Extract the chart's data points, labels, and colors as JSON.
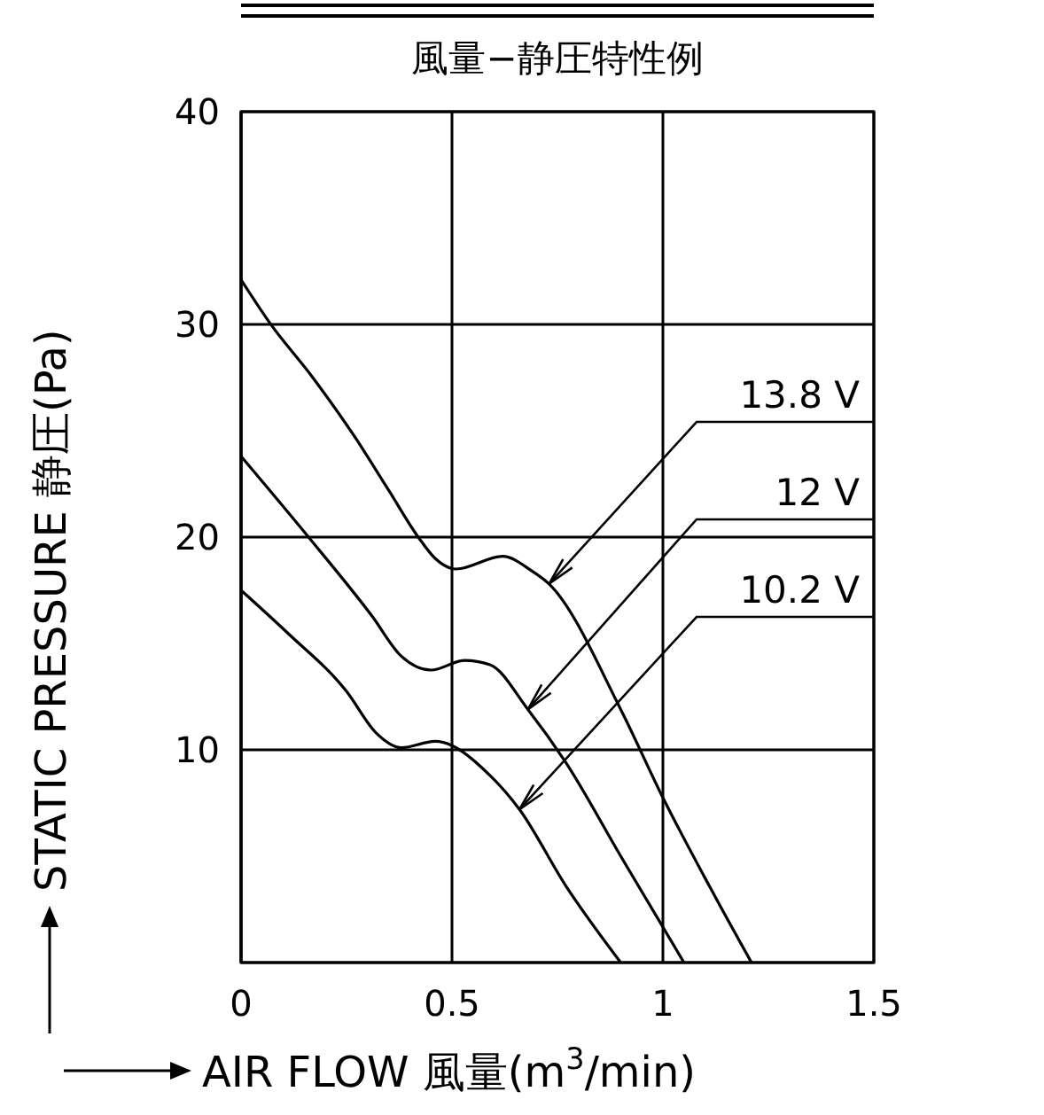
{
  "chart_data": {
    "type": "line",
    "title": "風量−静圧特性例",
    "xlabel": "AIR FLOW 風量(m$^{3}$/min)",
    "ylabel": "STATIC PRESSURE 静圧(Pa)",
    "xlim": [
      0,
      1.5
    ],
    "xticks": [
      0,
      0.5,
      1,
      1.5
    ],
    "ylim": [
      0,
      40
    ],
    "yticks": [
      10,
      20,
      30,
      40
    ],
    "grid": true,
    "legend": false,
    "marker": "none",
    "line_style": "solid",
    "series": [
      {
        "name": "13.8 V",
        "color": "#000000",
        "x": [
          0,
          0.067,
          0.17,
          0.27,
          0.35,
          0.42,
          0.46,
          0.51,
          0.62,
          0.69,
          0.73,
          0.9,
          1.0,
          1.11,
          1.21
        ],
        "values": [
          32.1,
          30.1,
          27.5,
          24.7,
          22.2,
          20,
          19,
          18.5,
          19.1,
          18.4,
          17.8,
          11.9,
          7.75,
          3.6,
          0
        ]
      },
      {
        "name": "12 V",
        "color": "#000000",
        "x": [
          0,
          0.16,
          0.31,
          0.38,
          0.45,
          0.53,
          0.59,
          0.68,
          0.77,
          0.9,
          1.05
        ],
        "values": [
          23.8,
          20,
          16.3,
          14.4,
          13.75,
          14.2,
          14,
          11.9,
          9.4,
          5,
          0
        ]
      },
      {
        "name": "10.2 V",
        "color": "#000000",
        "x": [
          0,
          0.11,
          0.25,
          0.32,
          0.38,
          0.46,
          0.59,
          0.66,
          0.77,
          0.9
        ],
        "values": [
          17.5,
          15.5,
          12.75,
          10.8,
          10.1,
          10.4,
          8.8,
          7.2,
          3.6,
          0
        ]
      }
    ]
  }
}
